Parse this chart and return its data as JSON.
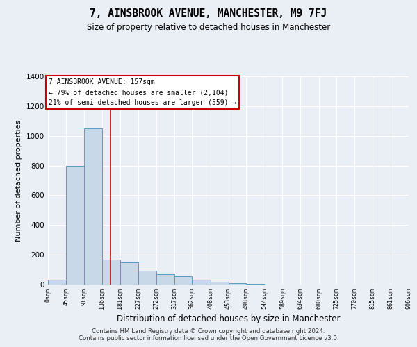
{
  "title": "7, AINSBROOK AVENUE, MANCHESTER, M9 7FJ",
  "subtitle": "Size of property relative to detached houses in Manchester",
  "xlabel": "Distribution of detached houses by size in Manchester",
  "ylabel": "Number of detached properties",
  "bin_edges": [
    0,
    45,
    91,
    136,
    181,
    227,
    272,
    317,
    362,
    408,
    453,
    498,
    544,
    589,
    634,
    680,
    725,
    770,
    815,
    861,
    906
  ],
  "bar_heights": [
    35,
    800,
    1050,
    170,
    150,
    95,
    70,
    55,
    35,
    20,
    10,
    5,
    0,
    0,
    0,
    0,
    0,
    0,
    0,
    0
  ],
  "bar_color": "#c8d8e8",
  "bar_edge_color": "#5a9abf",
  "vline_x": 157,
  "vline_color": "#cc0000",
  "annotation_line1": "7 AINSBROOK AVENUE: 157sqm",
  "annotation_line2": "← 79% of detached houses are smaller (2,104)",
  "annotation_line3": "21% of semi-detached houses are larger (559) →",
  "annotation_box_color": "#cc0000",
  "annotation_box_fill": "#ffffff",
  "ylim": [
    0,
    1400
  ],
  "yticks": [
    0,
    200,
    400,
    600,
    800,
    1000,
    1200,
    1400
  ],
  "bg_color": "#eaeef5",
  "plot_bg_color": "#eaeef5",
  "footer_text": "Contains HM Land Registry data © Crown copyright and database right 2024.\nContains public sector information licensed under the Open Government Licence v3.0.",
  "tick_labels": [
    "0sqm",
    "45sqm",
    "91sqm",
    "136sqm",
    "181sqm",
    "227sqm",
    "272sqm",
    "317sqm",
    "362sqm",
    "408sqm",
    "453sqm",
    "498sqm",
    "544sqm",
    "589sqm",
    "634sqm",
    "680sqm",
    "725sqm",
    "770sqm",
    "815sqm",
    "861sqm",
    "906sqm"
  ]
}
